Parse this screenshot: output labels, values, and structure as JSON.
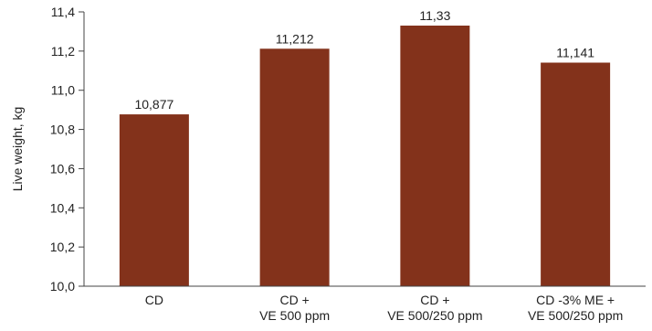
{
  "chart_data": {
    "type": "bar",
    "title": "",
    "xlabel": "",
    "ylabel": "Live weight, kg",
    "ylim": [
      10.0,
      11.4
    ],
    "yticks": [
      "10,0",
      "10,2",
      "10,4",
      "10,6",
      "10,8",
      "11,0",
      "11,2",
      "11,4"
    ],
    "grid": false,
    "legend": "none",
    "categories": [
      [
        "CD"
      ],
      [
        "CD +",
        "VE 500 ppm"
      ],
      [
        "CD +",
        "VE 500/250 ppm"
      ],
      [
        "CD -3% ME +",
        "VE 500/250 ppm"
      ]
    ],
    "values": [
      10.877,
      11.212,
      11.33,
      11.141
    ],
    "data_labels": [
      "10,877",
      "11,212",
      "11,33",
      "11,141"
    ],
    "colors": {
      "bar": "#83321b",
      "axis": "#444444",
      "text": "#222222"
    }
  }
}
